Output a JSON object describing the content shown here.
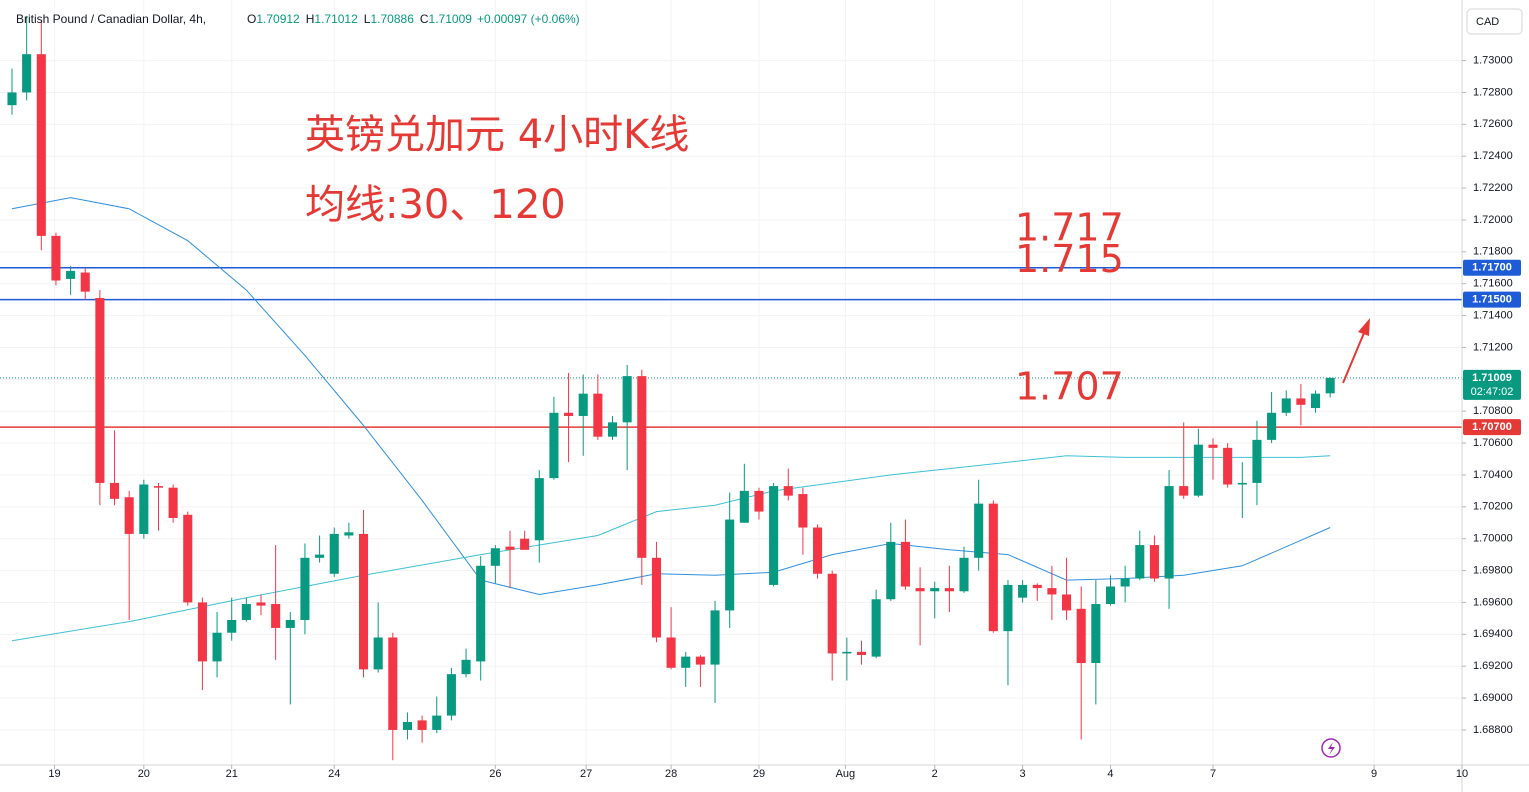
{
  "header": {
    "symbol": "British Pound / Canadian Dollar, 4h,",
    "ohlc": [
      {
        "key": "O",
        "value": "1.70912"
      },
      {
        "key": "H",
        "value": "1.71012"
      },
      {
        "key": "L",
        "value": "1.70886"
      },
      {
        "key": "C",
        "value": "1.71009"
      }
    ],
    "change": "+0.00097 (+0.06%)",
    "currency_button": "CAD"
  },
  "chart_data": {
    "type": "candlestick",
    "title": "英镑兑加元 4小时K线",
    "subtitle": "均线:30、120",
    "up_color": "#089981",
    "down_color": "#f23645",
    "open": [
      1.7272,
      1.728,
      1.7304,
      1.719,
      1.7163,
      1.7167,
      1.7151,
      1.7035,
      1.7026,
      1.7003,
      1.7033,
      1.7032,
      1.7015,
      1.696,
      1.6923,
      1.6941,
      1.6949,
      1.696,
      1.6959,
      1.6944,
      1.6949,
      1.6988,
      1.6978,
      1.7002,
      1.7003,
      1.6918,
      1.6938,
      1.688,
      1.6886,
      1.688,
      1.6889,
      1.6915,
      1.6923,
      1.6983,
      1.6995,
      1.7,
      1.6999,
      1.7038,
      1.7079,
      1.7077,
      1.7091,
      1.7064,
      1.7073,
      1.7102,
      1.6988,
      1.6938,
      1.6919,
      1.6926,
      1.6921,
      1.6955,
      1.701,
      1.703,
      1.6971,
      1.7033,
      1.7028,
      1.7007,
      1.6978,
      1.6928,
      1.6929,
      1.6926,
      1.6962,
      1.6998,
      1.6969,
      1.6967,
      1.6969,
      1.6967,
      1.6988,
      1.7022,
      1.6942,
      1.6963,
      1.6971,
      1.6969,
      1.6965,
      1.6956,
      1.6922,
      1.6959,
      1.697,
      1.6975,
      1.6996,
      1.6975,
      1.7033,
      1.7027,
      1.7059,
      1.7057,
      1.7034,
      1.7035,
      1.7062,
      1.7079,
      1.7088,
      1.7082,
      1.70912
    ],
    "high": [
      1.7295,
      1.7328,
      1.7325,
      1.7192,
      1.7171,
      1.717,
      1.7156,
      1.7068,
      1.703,
      1.7037,
      1.7035,
      1.7034,
      1.7017,
      1.6963,
      1.6954,
      1.6963,
      1.6963,
      1.6965,
      1.6996,
      1.6954,
      1.6997,
      1.7002,
      1.7007,
      1.701,
      1.7018,
      1.696,
      1.6941,
      1.6891,
      1.6889,
      1.6901,
      1.6919,
      1.6931,
      1.6989,
      1.6996,
      1.7005,
      1.7005,
      1.7043,
      1.7089,
      1.7104,
      1.7103,
      1.7103,
      1.7077,
      1.7109,
      1.7106,
      1.6998,
      1.6957,
      1.6929,
      1.6927,
      1.6961,
      1.7029,
      1.7047,
      1.7032,
      1.7035,
      1.7044,
      1.7032,
      1.7009,
      1.698,
      1.6938,
      1.6936,
      1.6968,
      1.701,
      1.7012,
      1.6982,
      1.6973,
      1.6983,
      1.6995,
      1.7037,
      1.7024,
      1.6974,
      1.6974,
      1.6972,
      1.6983,
      1.6988,
      1.697,
      1.6974,
      1.6977,
      1.6983,
      1.7005,
      1.7002,
      1.7043,
      1.7073,
      1.7069,
      1.7063,
      1.706,
      1.7048,
      1.7074,
      1.7092,
      1.7093,
      1.7097,
      1.7093,
      1.71012
    ],
    "low": [
      1.7266,
      1.7275,
      1.7181,
      1.7159,
      1.7153,
      1.715,
      1.7021,
      1.7021,
      1.6949,
      1.7,
      1.7005,
      1.701,
      1.6958,
      1.6905,
      1.6913,
      1.6936,
      1.6948,
      1.6952,
      1.6924,
      1.6896,
      1.694,
      1.6985,
      1.6976,
      1.7,
      1.6913,
      1.6916,
      1.6861,
      1.6874,
      1.6872,
      1.6878,
      1.6886,
      1.6913,
      1.6911,
      1.6972,
      1.6969,
      1.6996,
      1.6985,
      1.7037,
      1.7048,
      1.7052,
      1.7062,
      1.7062,
      1.7043,
      1.6971,
      1.6935,
      1.6918,
      1.6907,
      1.6907,
      1.6897,
      1.6944,
      1.701,
      1.7012,
      1.697,
      1.7024,
      1.699,
      1.6975,
      1.6911,
      1.6911,
      1.6921,
      1.6925,
      1.6961,
      1.6968,
      1.6933,
      1.695,
      1.6954,
      1.6966,
      1.698,
      1.6941,
      1.6908,
      1.696,
      1.6961,
      1.6949,
      1.6949,
      1.6874,
      1.6896,
      1.6958,
      1.696,
      1.6974,
      1.6973,
      1.6956,
      1.7025,
      1.7026,
      1.7037,
      1.7032,
      1.7013,
      1.7021,
      1.706,
      1.7077,
      1.7071,
      1.7079,
      1.70886
    ],
    "close": [
      1.728,
      1.7304,
      1.719,
      1.7162,
      1.7168,
      1.7155,
      1.7035,
      1.7025,
      1.7003,
      1.7034,
      1.7032,
      1.7013,
      1.696,
      1.6923,
      1.6941,
      1.6949,
      1.6959,
      1.6958,
      1.6944,
      1.6949,
      1.6988,
      1.699,
      1.7003,
      1.7004,
      1.6918,
      1.6938,
      1.688,
      1.6885,
      1.688,
      1.6889,
      1.6915,
      1.6924,
      1.6983,
      1.6994,
      1.6993,
      1.6993,
      1.7038,
      1.7079,
      1.7077,
      1.7091,
      1.7064,
      1.7073,
      1.7102,
      1.6988,
      1.6938,
      1.6919,
      1.6926,
      1.6921,
      1.6955,
      1.7012,
      1.703,
      1.7017,
      1.7033,
      1.7027,
      1.7007,
      1.6978,
      1.6928,
      1.6929,
      1.6927,
      1.6962,
      1.6998,
      1.697,
      1.6967,
      1.6969,
      1.6967,
      1.6988,
      1.7022,
      1.6942,
      1.6971,
      1.6971,
      1.6969,
      1.6965,
      1.6955,
      1.6922,
      1.6959,
      1.697,
      1.6975,
      1.6996,
      1.6975,
      1.7033,
      1.7027,
      1.7059,
      1.7057,
      1.7034,
      1.7035,
      1.7062,
      1.7079,
      1.7088,
      1.7084,
      1.7091,
      1.71009
    ],
    "moving_averages": [
      {
        "color": "#2f8fe0",
        "x": [
          0,
          4,
          8,
          12,
          16,
          20,
          24,
          28,
          32,
          36,
          40,
          44,
          48,
          52,
          56,
          60,
          64,
          68,
          72,
          76,
          80,
          84,
          88,
          90
        ],
        "values": [
          1.7207,
          1.7214,
          1.7207,
          1.7187,
          1.7156,
          1.7115,
          1.7071,
          1.7024,
          1.6974,
          1.6965,
          1.6971,
          1.6978,
          1.6977,
          1.6979,
          1.699,
          1.6997,
          1.6993,
          1.699,
          1.6974,
          1.6975,
          1.6977,
          1.6983,
          1.6999,
          1.7007
        ]
      },
      {
        "color": "#3ec0d4",
        "x": [
          0,
          8,
          16,
          24,
          32,
          40,
          44,
          48,
          52,
          56,
          60,
          64,
          68,
          72,
          76,
          80,
          84,
          88,
          90
        ],
        "values": [
          1.6936,
          1.6948,
          1.6963,
          1.6977,
          1.699,
          1.7002,
          1.7017,
          1.7021,
          1.703,
          1.7035,
          1.704,
          1.7044,
          1.7048,
          1.7052,
          1.7051,
          1.7051,
          1.7051,
          1.7051,
          1.7052
        ]
      }
    ],
    "hlines": [
      {
        "value": 1.717,
        "label": "1.71700",
        "note": "1.717",
        "color": "#1e5bd6"
      },
      {
        "value": 1.715,
        "label": "1.71500",
        "note": "1.715",
        "color": "#1e5bd6"
      },
      {
        "value": 1.707,
        "label": "1.70700",
        "note": "1.707",
        "color": "#e53935"
      }
    ],
    "last_price": {
      "value": 1.71009,
      "label": "1.71009",
      "countdown": "02:47:02"
    },
    "xlim": [
      -0.82,
      99.0
    ],
    "xticks": [
      {
        "value": 2.9,
        "label": "19"
      },
      {
        "value": 9,
        "label": "20"
      },
      {
        "value": 15,
        "label": "21"
      },
      {
        "value": 22,
        "label": "24"
      },
      {
        "value": 33,
        "label": "26"
      },
      {
        "value": 39.2,
        "label": "27"
      },
      {
        "value": 45,
        "label": "28"
      },
      {
        "value": 51,
        "label": "29"
      },
      {
        "value": 56.9,
        "label": "Aug"
      },
      {
        "value": 63,
        "label": "2"
      },
      {
        "value": 69,
        "label": "3"
      },
      {
        "value": 75,
        "label": "4"
      },
      {
        "value": 82,
        "label": "7"
      },
      {
        "value": 93,
        "label": "9"
      },
      {
        "value": 99,
        "label": "10"
      }
    ],
    "ylim": [
      1.6858,
      1.7338
    ],
    "yticks": [
      {
        "value": 1.688,
        "label": "1.68800"
      },
      {
        "value": 1.69,
        "label": "1.69000"
      },
      {
        "value": 1.692,
        "label": "1.69200"
      },
      {
        "value": 1.694,
        "label": "1.69400"
      },
      {
        "value": 1.696,
        "label": "1.69600"
      },
      {
        "value": 1.698,
        "label": "1.69800"
      },
      {
        "value": 1.7,
        "label": "1.70000"
      },
      {
        "value": 1.702,
        "label": "1.70200"
      },
      {
        "value": 1.704,
        "label": "1.70400"
      },
      {
        "value": 1.706,
        "label": "1.70600"
      },
      {
        "value": 1.708,
        "label": "1.70800"
      },
      {
        "value": 1.71,
        "label": "1.71000"
      },
      {
        "value": 1.712,
        "label": "1.71200"
      },
      {
        "value": 1.714,
        "label": "1.71400"
      },
      {
        "value": 1.716,
        "label": "1.71600"
      },
      {
        "value": 1.718,
        "label": "1.71800"
      },
      {
        "value": 1.72,
        "label": "1.72000"
      },
      {
        "value": 1.722,
        "label": "1.72200"
      },
      {
        "value": 1.724,
        "label": "1.72400"
      },
      {
        "value": 1.726,
        "label": "1.72600"
      },
      {
        "value": 1.728,
        "label": "1.72800"
      },
      {
        "value": 1.73,
        "label": "1.73000"
      }
    ],
    "grid": true
  }
}
